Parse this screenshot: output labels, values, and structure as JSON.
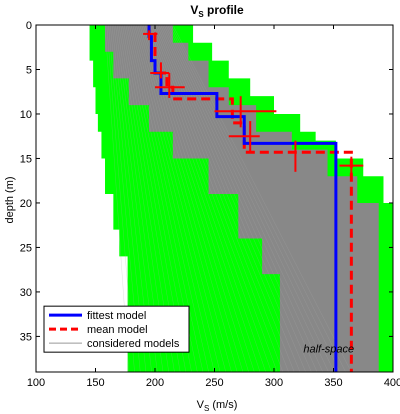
{
  "chart_data": {
    "type": "line",
    "title_main": "V",
    "title_sub": "S",
    "title_rest": " profile",
    "xlabel_main": "V",
    "xlabel_sub": "S",
    "xlabel_rest": " (m/s)",
    "ylabel": "depth (m)",
    "xlim": [
      100,
      400
    ],
    "ylim": [
      0,
      39
    ],
    "y_reversed": true,
    "xticks": [
      100,
      150,
      200,
      250,
      300,
      350,
      400
    ],
    "yticks": [
      0,
      5,
      10,
      15,
      20,
      25,
      30,
      35
    ],
    "annotation": "half-space",
    "colors": {
      "envelope": "#00ff00",
      "considered": "#888888",
      "fittest": "#0000ff",
      "mean": "#ff0000"
    },
    "envelope": {
      "min_velocity": [
        [
          0,
          145
        ],
        [
          4,
          145
        ],
        [
          4,
          148
        ],
        [
          7,
          148
        ],
        [
          7,
          150
        ],
        [
          10,
          150
        ],
        [
          10,
          152
        ],
        [
          12,
          152
        ],
        [
          12,
          155
        ],
        [
          15,
          155
        ],
        [
          15,
          158
        ],
        [
          19,
          158
        ],
        [
          19,
          165
        ],
        [
          23,
          165
        ],
        [
          23,
          170
        ],
        [
          26,
          170
        ],
        [
          26,
          177
        ],
        [
          39,
          177
        ]
      ],
      "max_velocity": [
        [
          0,
          232
        ],
        [
          2,
          232
        ],
        [
          2,
          248
        ],
        [
          4,
          248
        ],
        [
          4,
          262
        ],
        [
          6,
          262
        ],
        [
          6,
          280
        ],
        [
          8,
          280
        ],
        [
          8,
          300
        ],
        [
          10,
          300
        ],
        [
          10,
          322
        ],
        [
          12,
          322
        ],
        [
          12,
          335
        ],
        [
          13,
          335
        ],
        [
          13,
          352
        ],
        [
          15,
          352
        ],
        [
          15,
          375
        ],
        [
          17,
          375
        ],
        [
          17,
          392
        ],
        [
          20,
          392
        ],
        [
          20,
          400
        ],
        [
          39,
          400
        ]
      ]
    },
    "considered_band": {
      "lower": [
        [
          0,
          158
        ],
        [
          3,
          158
        ],
        [
          3,
          165
        ],
        [
          6,
          165
        ],
        [
          6,
          178
        ],
        [
          9,
          178
        ],
        [
          9,
          195
        ],
        [
          12,
          195
        ],
        [
          12,
          215
        ],
        [
          15,
          215
        ],
        [
          15,
          245
        ],
        [
          19,
          245
        ],
        [
          19,
          270
        ],
        [
          24,
          270
        ],
        [
          24,
          290
        ],
        [
          28,
          290
        ],
        [
          28,
          305
        ],
        [
          39,
          305
        ]
      ],
      "upper": [
        [
          0,
          215
        ],
        [
          2,
          215
        ],
        [
          2,
          228
        ],
        [
          4,
          228
        ],
        [
          4,
          245
        ],
        [
          7,
          245
        ],
        [
          7,
          262
        ],
        [
          9,
          262
        ],
        [
          9,
          285
        ],
        [
          12,
          285
        ],
        [
          12,
          315
        ],
        [
          14,
          315
        ],
        [
          14,
          345
        ],
        [
          17,
          345
        ],
        [
          17,
          370
        ],
        [
          20,
          370
        ],
        [
          20,
          388
        ],
        [
          39,
          388
        ]
      ]
    },
    "series": [
      {
        "name": "fittest model",
        "style": "solid",
        "points": [
          [
            0,
            195
          ],
          [
            1.3,
            195
          ],
          [
            1.3,
            197
          ],
          [
            4.0,
            197
          ],
          [
            4.0,
            200
          ],
          [
            5.4,
            200
          ],
          [
            5.4,
            205
          ],
          [
            7.7,
            205
          ],
          [
            7.7,
            252
          ],
          [
            10.3,
            252
          ],
          [
            10.3,
            275
          ],
          [
            13.3,
            275
          ],
          [
            13.3,
            352
          ],
          [
            39,
            352
          ]
        ]
      },
      {
        "name": "mean model",
        "style": "dashed",
        "points": [
          [
            0,
            195
          ],
          [
            1.0,
            195
          ],
          [
            1.0,
            200
          ],
          [
            5.4,
            200
          ],
          [
            5.4,
            210
          ],
          [
            7.0,
            210
          ],
          [
            7.0,
            215
          ],
          [
            8.3,
            215
          ],
          [
            8.3,
            265
          ],
          [
            11.0,
            265
          ],
          [
            11.0,
            275
          ],
          [
            14.3,
            275
          ],
          [
            14.3,
            365
          ],
          [
            39,
            365
          ]
        ]
      }
    ],
    "error_bars": {
      "vertical": [
        {
          "v": 195,
          "d0": 0.6,
          "d1": 1.7
        },
        {
          "v": 205,
          "d0": 4.2,
          "d1": 6.0
        },
        {
          "v": 212,
          "d0": 5.4,
          "d1": 8.2
        },
        {
          "v": 272,
          "d0": 8.0,
          "d1": 11.5
        },
        {
          "v": 280,
          "d0": 10.8,
          "d1": 14.2
        },
        {
          "v": 318,
          "d0": 13.0,
          "d1": 16.5
        },
        {
          "v": 365,
          "d0": 14.8,
          "d1": 17.2
        }
      ],
      "horizontal": [
        {
          "d": 1.0,
          "v0": 190,
          "v1": 202
        },
        {
          "d": 5.4,
          "v0": 196,
          "v1": 212
        },
        {
          "d": 7.0,
          "v0": 200,
          "v1": 225
        },
        {
          "d": 9.7,
          "v0": 250,
          "v1": 302
        },
        {
          "d": 12.5,
          "v0": 262,
          "v1": 288
        },
        {
          "d": 15.8,
          "v0": 355,
          "v1": 375
        }
      ]
    },
    "legend": {
      "position": "bottom-left",
      "entries": [
        "fittest model",
        "mean model",
        "considered models"
      ]
    }
  }
}
